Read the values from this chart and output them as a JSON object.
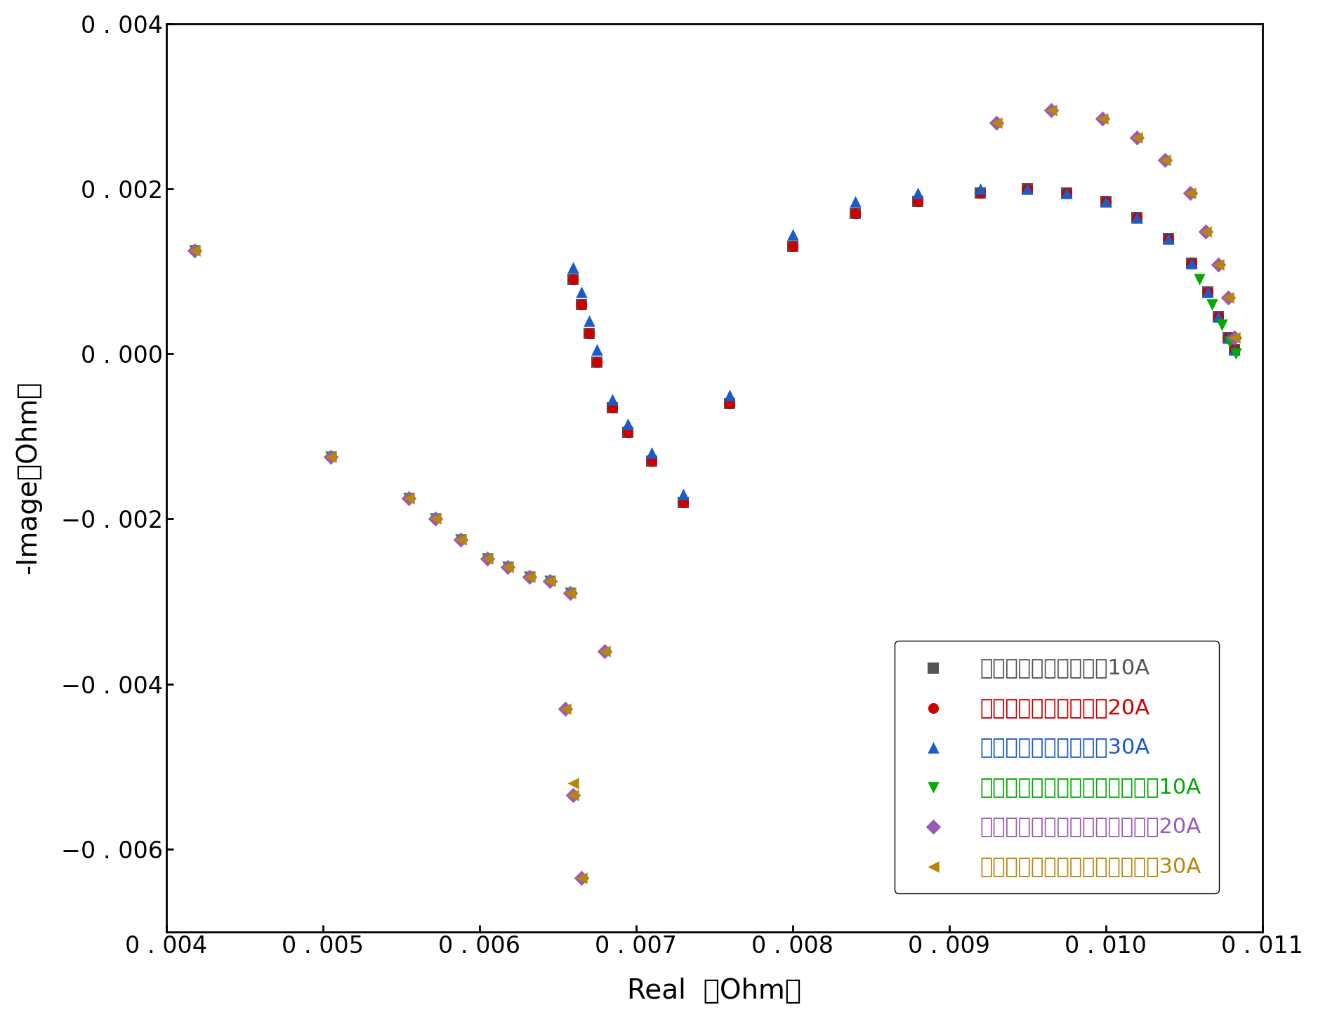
{
  "xlabel": "Real （Ohm）",
  "ylabel": "-Image（Ohm）",
  "xlim": [
    0.004,
    0.011
  ],
  "ylim": [
    -0.007,
    0.004
  ],
  "xticks": [
    0.004,
    0.005,
    0.006,
    0.007,
    0.008,
    0.009,
    0.01,
    0.011
  ],
  "yticks": [
    -0.006,
    -0.004,
    -0.002,
    0.0,
    0.002,
    0.004
  ],
  "series": [
    {
      "label": "电化学工作站直接测试10A",
      "color": "#555555",
      "marker": "s",
      "ms": 120,
      "x": [
        0.0066,
        0.00665,
        0.0067,
        0.00675,
        0.00685,
        0.00695,
        0.0071,
        0.0073,
        0.0076,
        0.008,
        0.0084,
        0.0088,
        0.0092,
        0.0095,
        0.00975,
        0.01,
        0.0102,
        0.0104,
        0.01055,
        0.01065,
        0.01072,
        0.01078,
        0.01082
      ],
      "y": [
        0.0009,
        0.0006,
        0.00025,
        -0.0001,
        -0.00065,
        -0.00095,
        -0.0013,
        -0.0018,
        -0.0006,
        0.0013,
        0.0017,
        0.00185,
        0.00195,
        0.002,
        0.00195,
        0.00185,
        0.00165,
        0.0014,
        0.0011,
        0.00075,
        0.00045,
        0.0002,
        5e-05
      ]
    },
    {
      "label": "电化学工作站直接测试20A",
      "color": "#cc0000",
      "marker": "o",
      "ms": 120,
      "x": [
        0.0066,
        0.00665,
        0.0067,
        0.00675,
        0.00685,
        0.00695,
        0.0071,
        0.0073,
        0.0076,
        0.008,
        0.0084,
        0.0088,
        0.0092,
        0.0095,
        0.00975,
        0.01,
        0.0102,
        0.0104,
        0.01055,
        0.01065,
        0.01072,
        0.01078,
        0.01082
      ],
      "y": [
        0.0009,
        0.0006,
        0.00025,
        -0.0001,
        -0.00065,
        -0.00095,
        -0.0013,
        -0.0018,
        -0.0006,
        0.0013,
        0.0017,
        0.00185,
        0.00195,
        0.002,
        0.00195,
        0.00185,
        0.00165,
        0.0014,
        0.0011,
        0.00075,
        0.00045,
        0.0002,
        5e-05
      ]
    },
    {
      "label": "电化学工作站直接测试30A",
      "color": "#1a5cc8",
      "marker": "^",
      "ms": 140,
      "x": [
        0.0066,
        0.00665,
        0.0067,
        0.00675,
        0.00685,
        0.00695,
        0.0071,
        0.0073,
        0.0076,
        0.008,
        0.0084,
        0.0088,
        0.0092,
        0.0095,
        0.00975,
        0.01,
        0.0102,
        0.0104,
        0.01055,
        0.01065,
        0.01072,
        0.01078,
        0.01082
      ],
      "y": [
        0.00105,
        0.00075,
        0.0004,
        5e-05,
        -0.00055,
        -0.00085,
        -0.0012,
        -0.0017,
        -0.0005,
        0.00145,
        0.00185,
        0.00195,
        0.002,
        0.002,
        0.00195,
        0.00185,
        0.00165,
        0.0014,
        0.0011,
        0.00075,
        0.00045,
        0.0002,
        5e-05
      ]
    },
    {
      "label": "电化学工作站并联直流电源测试10A",
      "color": "#00aa00",
      "marker": "v",
      "ms": 140,
      "x": [
        0.00418,
        0.00505,
        0.00555,
        0.00572,
        0.00588,
        0.00605,
        0.00618,
        0.00632,
        0.00645,
        0.00658,
        0.0106,
        0.01068,
        0.01074,
        0.01079,
        0.01083
      ],
      "y": [
        0.00125,
        -0.00125,
        -0.00175,
        -0.002,
        -0.00225,
        -0.00248,
        -0.00258,
        -0.0027,
        -0.00275,
        -0.0029,
        0.0009,
        0.0006,
        0.00035,
        0.00015,
        0.0
      ]
    },
    {
      "label": "电化学工作站并联直流电源测试20A",
      "color": "#9b59b6",
      "marker": "D",
      "ms": 120,
      "x": [
        0.00418,
        0.00505,
        0.00555,
        0.00572,
        0.00588,
        0.00605,
        0.00618,
        0.00632,
        0.00645,
        0.00658,
        0.0068,
        0.00655,
        0.0066,
        0.00665,
        0.0093,
        0.00965,
        0.00998,
        0.0102,
        0.01038,
        0.01054,
        0.01064,
        0.01072,
        0.01078,
        0.01082
      ],
      "y": [
        0.00125,
        -0.00125,
        -0.00175,
        -0.002,
        -0.00225,
        -0.00248,
        -0.00258,
        -0.0027,
        -0.00275,
        -0.0029,
        -0.0036,
        -0.0043,
        -0.00535,
        -0.00635,
        0.0028,
        0.00295,
        0.00285,
        0.00262,
        0.00235,
        0.00195,
        0.00148,
        0.00108,
        0.00068,
        0.0002
      ]
    },
    {
      "label": "电化学工作站并联直流电源测试30A",
      "color": "#b8860b",
      "marker": "<",
      "ms": 140,
      "x": [
        0.00418,
        0.00505,
        0.00555,
        0.00572,
        0.00588,
        0.00605,
        0.00618,
        0.00632,
        0.00645,
        0.00658,
        0.0068,
        0.00655,
        0.0066,
        0.00665,
        0.0066,
        0.0093,
        0.00965,
        0.00998,
        0.0102,
        0.01038,
        0.01054,
        0.01064,
        0.01072,
        0.01078,
        0.01082
      ],
      "y": [
        0.00125,
        -0.00125,
        -0.00175,
        -0.002,
        -0.00225,
        -0.00248,
        -0.00258,
        -0.0027,
        -0.00275,
        -0.0029,
        -0.0036,
        -0.0043,
        -0.00535,
        -0.00635,
        -0.0052,
        0.0028,
        0.00295,
        0.00285,
        0.00262,
        0.00235,
        0.00195,
        0.00148,
        0.00108,
        0.00068,
        0.0002
      ]
    }
  ],
  "legend_labels": [
    "电化学工作站直接测试10A",
    "电化学工作站直接测试20A",
    "电化学工作站直接测试30A",
    "电化学工作站并联直流电源测试10A",
    "电化学工作站并联直流电源测试20A",
    "电化学工作站并联直流电源测试30A"
  ],
  "legend_colors": [
    "#555555",
    "#cc0000",
    "#1a5cc8",
    "#00aa00",
    "#9b59b6",
    "#b8860b"
  ],
  "background_color": "#ffffff",
  "axis_label_fontsize": 28,
  "tick_fontsize": 24,
  "legend_fontsize": 22
}
